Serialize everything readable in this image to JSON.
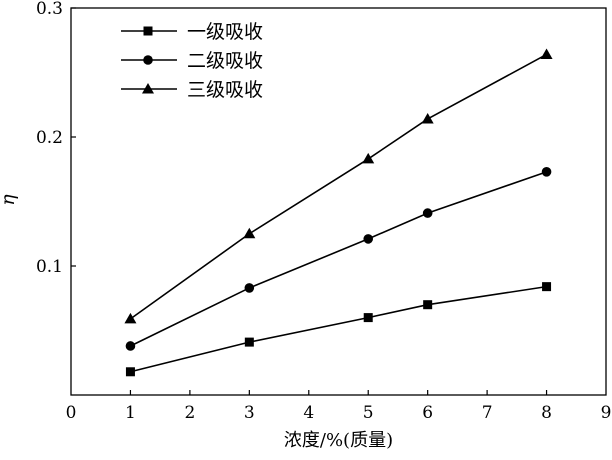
{
  "chart_data": {
    "type": "line",
    "title": "",
    "xlabel": "浓度/%(质量)",
    "ylabel": "η",
    "xlim": [
      0,
      9
    ],
    "ylim": [
      0,
      0.3
    ],
    "xticks": [
      "0",
      "1",
      "2",
      "3",
      "4",
      "5",
      "6",
      "7",
      "8",
      "9"
    ],
    "yticks": [
      "0.1",
      "0.2",
      "0.3"
    ],
    "grid": false,
    "legend_position": "top-left",
    "series": [
      {
        "name": "一级吸收",
        "marker": "square",
        "x": [
          1,
          3,
          5,
          6,
          8
        ],
        "y": [
          0.018,
          0.041,
          0.06,
          0.07,
          0.084
        ]
      },
      {
        "name": "二级吸收",
        "marker": "circle",
        "x": [
          1,
          3,
          5,
          6,
          8
        ],
        "y": [
          0.038,
          0.083,
          0.121,
          0.141,
          0.173
        ]
      },
      {
        "name": "三级吸收",
        "marker": "triangle",
        "x": [
          1,
          3,
          5,
          6,
          8
        ],
        "y": [
          0.059,
          0.125,
          0.183,
          0.214,
          0.264
        ]
      }
    ]
  }
}
